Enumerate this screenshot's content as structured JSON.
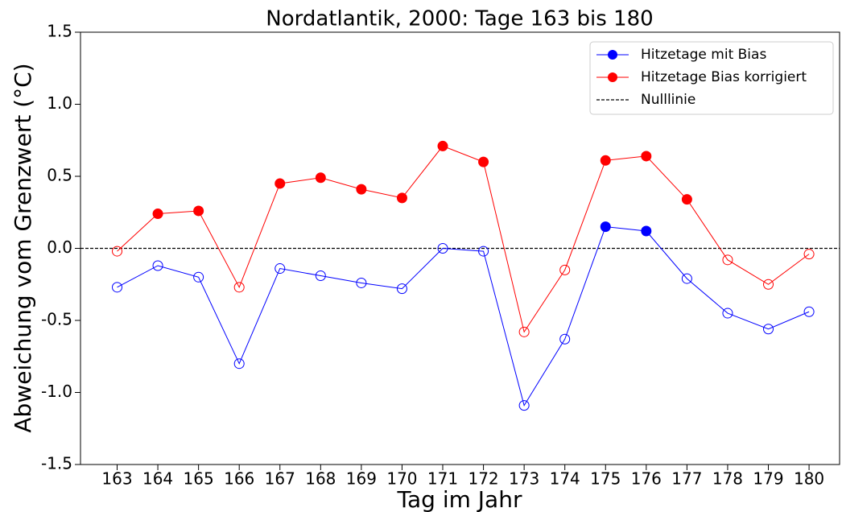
{
  "chart_data": {
    "type": "line",
    "title": "Nordatlantik, 2000: Tage 163 bis 180",
    "xlabel": "Tag im Jahr",
    "ylabel": "Abweichung vom Grenzwert (°C)",
    "x": [
      163,
      164,
      165,
      166,
      167,
      168,
      169,
      170,
      171,
      172,
      173,
      174,
      175,
      176,
      177,
      178,
      179,
      180
    ],
    "series": [
      {
        "name": "Hitzetage mit Bias",
        "color": "#0000ff",
        "values": [
          -0.27,
          -0.12,
          -0.2,
          -0.8,
          -0.14,
          -0.19,
          -0.24,
          -0.28,
          0.0,
          -0.02,
          -1.09,
          -0.63,
          0.15,
          0.12,
          -0.21,
          -0.45,
          -0.56,
          -0.44
        ]
      },
      {
        "name": "Hitzetage Bias korrigiert",
        "color": "#ff0000",
        "values": [
          -0.02,
          0.24,
          0.26,
          -0.27,
          0.45,
          0.49,
          0.41,
          0.35,
          0.71,
          0.6,
          -0.58,
          -0.15,
          0.61,
          0.64,
          0.34,
          -0.08,
          -0.25,
          -0.04
        ]
      }
    ],
    "reference_line": {
      "name": "Nulllinie",
      "value": 0,
      "color": "#000000"
    },
    "xlim": [
      162.1,
      180.75
    ],
    "xticks": [
      163,
      164,
      165,
      166,
      167,
      168,
      169,
      170,
      171,
      172,
      173,
      174,
      175,
      176,
      177,
      178,
      179,
      180
    ],
    "ylim": [
      -1.5,
      1.5
    ],
    "yticks": [
      -1.5,
      {
        "value": -1,
        "label": "-1.0"
      },
      -0.5,
      {
        "value": 0,
        "label": "0.0"
      },
      0.5,
      {
        "value": 1,
        "label": "1.0"
      },
      1.5
    ],
    "legend": "upper right",
    "grid": false
  }
}
